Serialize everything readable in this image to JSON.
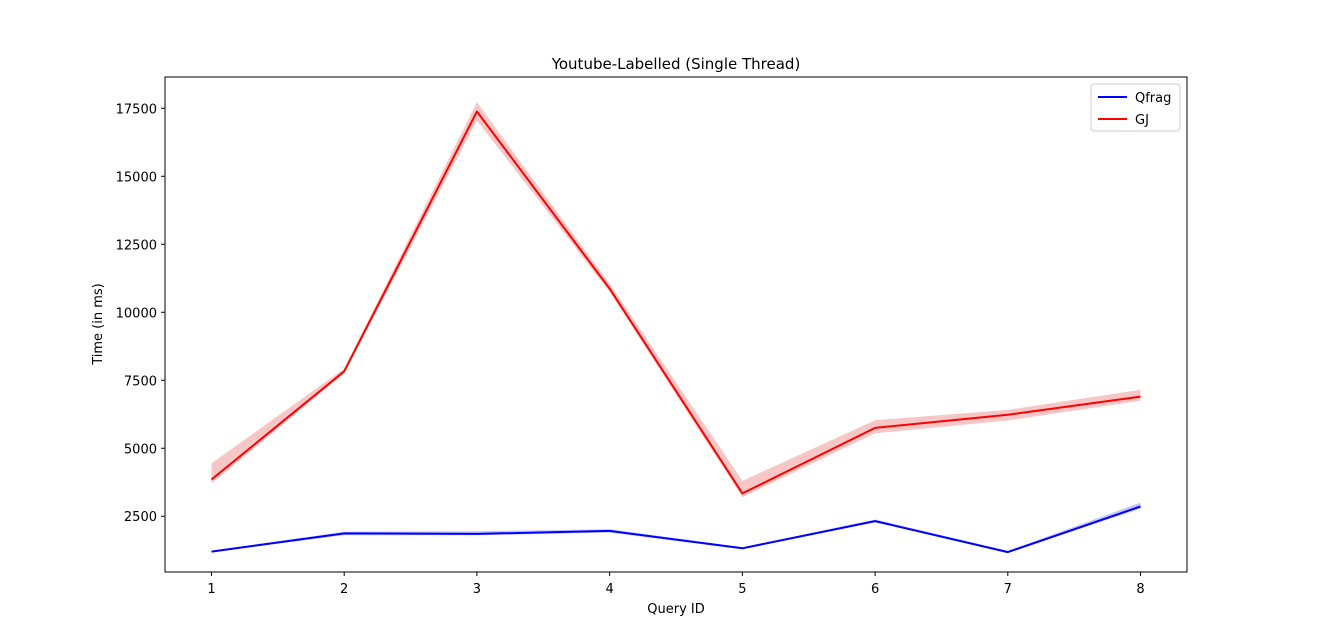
{
  "chart_data": {
    "type": "line",
    "title": "Youtube-Labelled (Single Thread)",
    "xlabel": "Query ID",
    "ylabel": "Time (in ms)",
    "x": [
      1,
      2,
      3,
      4,
      5,
      6,
      7,
      8
    ],
    "xticks": [
      "1",
      "2",
      "3",
      "4",
      "5",
      "6",
      "7",
      "8"
    ],
    "yticks": [
      2500,
      5000,
      7500,
      10000,
      12500,
      15000,
      17500
    ],
    "xlim": [
      0.65,
      8.35
    ],
    "ylim": [
      450,
      18650
    ],
    "grid": false,
    "legend": "top-right",
    "series": [
      {
        "name": "Qfrag",
        "color": "#0000ff",
        "band_color": "#b0b0ff",
        "values": [
          1200,
          1870,
          1850,
          1960,
          1320,
          2320,
          1180,
          2860
        ],
        "lower": [
          1180,
          1800,
          1800,
          1900,
          1290,
          2280,
          1150,
          2780
        ],
        "upper": [
          1230,
          1930,
          1950,
          2020,
          1360,
          2380,
          1230,
          3000
        ]
      },
      {
        "name": "GJ",
        "color": "#ff0000",
        "band_color": "#f4b4b4",
        "values": [
          3850,
          7830,
          17380,
          10870,
          3340,
          5750,
          6230,
          6900
        ],
        "lower": [
          3700,
          7750,
          17050,
          10750,
          3200,
          5550,
          6020,
          6750
        ],
        "upper": [
          4450,
          7930,
          17720,
          11050,
          3800,
          6030,
          6410,
          7150
        ]
      }
    ]
  }
}
